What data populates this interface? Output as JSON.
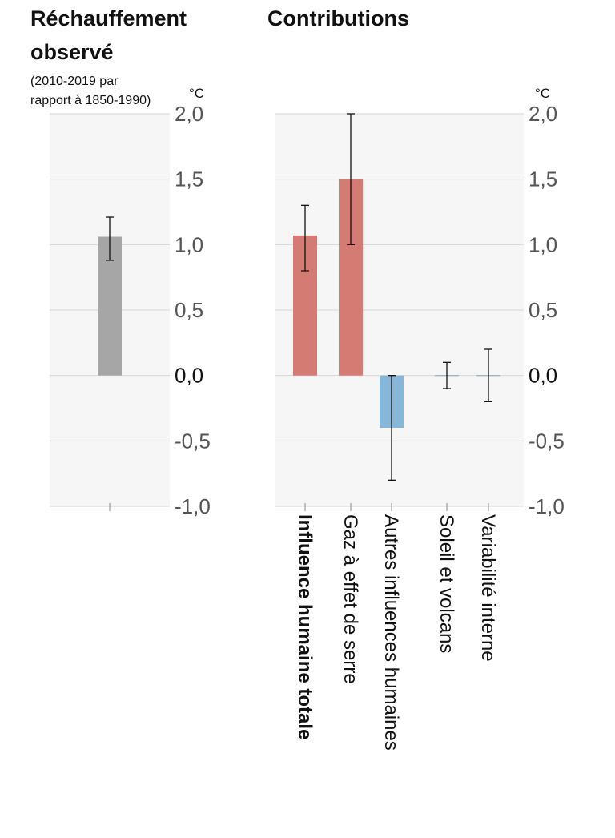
{
  "chart_data": [
    {
      "type": "bar",
      "title": [
        "Réchauffement",
        "observé"
      ],
      "subtitle": [
        "(2010-2019 par",
        "rapport à 1850-1990)"
      ],
      "unit": "°C",
      "categories": [
        ""
      ],
      "values": [
        1.06
      ],
      "error_low": [
        0.88
      ],
      "error_high": [
        1.21
      ],
      "colors": [
        "#a6a6a6"
      ],
      "ylim": [
        -1.0,
        2.0
      ],
      "yticks": [
        "2,0",
        "1,5",
        "1,0",
        "0,5",
        "0,0",
        "-0,5",
        "-1,0"
      ],
      "grid": true
    },
    {
      "type": "bar",
      "title": "Contributions",
      "unit": "°C",
      "categories": [
        "Influence humaine totale",
        "Gaz à effet de serre",
        "Autres influences humaines",
        "Soleil et volcans",
        "Variabilité interne"
      ],
      "values": [
        1.07,
        1.5,
        -0.4,
        0.0,
        0.0
      ],
      "error_low": [
        0.8,
        1.0,
        -0.8,
        -0.1,
        -0.2
      ],
      "error_high": [
        1.3,
        2.0,
        0.0,
        0.1,
        0.2
      ],
      "colors": [
        "#d47b74",
        "#d47b74",
        "#86b6d8",
        "#86b6d8",
        "#86b6d8"
      ],
      "bold_categories": [
        "Influence humaine totale"
      ],
      "ylim": [
        -1.0,
        2.0
      ],
      "yticks": [
        "2,0",
        "1,5",
        "1,0",
        "0,5",
        "0,0",
        "-0,5",
        "-1,0"
      ],
      "grid": true
    }
  ]
}
